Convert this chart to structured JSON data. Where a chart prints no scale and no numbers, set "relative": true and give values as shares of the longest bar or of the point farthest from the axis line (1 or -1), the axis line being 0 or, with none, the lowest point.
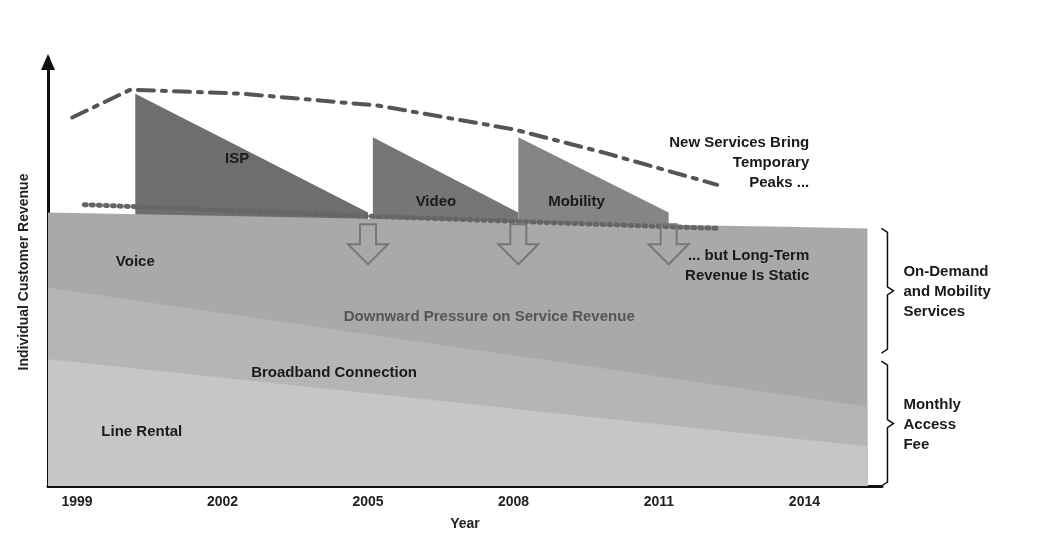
{
  "chart_data": {
    "type": "area",
    "relative": true,
    "xlabel": "Year",
    "ylabel": "Individual Customer Revenue",
    "xlim": [
      1998.4,
      2015.6
    ],
    "xticks": [
      1999,
      2002,
      2005,
      2008,
      2011,
      2014
    ],
    "grid": false,
    "marker": "none",
    "series": [
      {
        "color": "#6e6e6e",
        "x": [
          2000.2,
          2000.2,
          2005.0
        ],
        "values": [
          0,
          0.99,
          0.69
        ]
      },
      {
        "color": "#767676",
        "x": [
          2005.1,
          2005.1,
          2008.1
        ],
        "values": [
          0,
          0.88,
          0.69
        ]
      },
      {
        "color": "#858585",
        "x": [
          2008.1,
          2008.1,
          2011.2
        ],
        "values": [
          0,
          0.88,
          0.69
        ]
      },
      {
        "color": "#a9a9a9",
        "x": [
          1998.4,
          2015.3
        ],
        "values": [
          0.69,
          0.65
        ]
      },
      {
        "color": "#b5b5b5",
        "x": [
          1998.4,
          2015.3
        ],
        "values": [
          0.5,
          0.2
        ]
      },
      {
        "color": "#c6c6c6",
        "x": [
          1998.4,
          2015.3
        ],
        "values": [
          0.32,
          0.1
        ]
      },
      {
        "type": "line",
        "color": "#555555",
        "line_style": "dashed",
        "x": [
          1998.9,
          2000.1,
          2002.4,
          2005.2,
          2008.0,
          2009.9,
          2012.2
        ],
        "values": [
          0.93,
          1.0,
          0.99,
          0.96,
          0.9,
          0.84,
          0.76
        ]
      },
      {
        "type": "line",
        "color": "#666666",
        "line_style": "dotted",
        "x": [
          1999.15,
          2005.2,
          2012.2
        ],
        "values": [
          0.71,
          0.68,
          0.65
        ]
      }
    ],
    "annotations": [
      "ISP",
      "Video",
      "Mobility",
      "Voice",
      "Broadband Connection",
      "Line Rental",
      "Downward Pressure on Service Revenue",
      "New Services Bring\nTemporary\nPeaks ...",
      "... but Long-Term\nRevenue Is Static",
      "On-Demand\nand Mobility\nServices",
      "Monthly\nAccess\nFee"
    ]
  }
}
